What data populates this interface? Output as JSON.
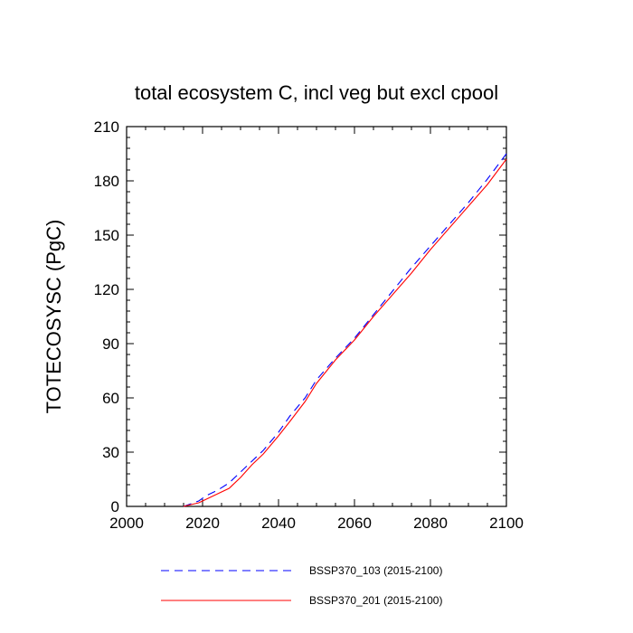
{
  "chart_data": {
    "type": "line",
    "title": "total ecosystem C, incl veg but excl cpool",
    "xlabel": "",
    "ylabel": "TOTECOSYSC  (PgC)",
    "xlim": [
      2000,
      2100
    ],
    "ylim": [
      0,
      210
    ],
    "xticks": [
      2000,
      2020,
      2040,
      2060,
      2080,
      2100
    ],
    "yticks": [
      0,
      30,
      60,
      90,
      120,
      150,
      180,
      210
    ],
    "grid": false,
    "legend_position": "bottom",
    "series": [
      {
        "name": "BSSP370_103 (2015-2100)",
        "color": "#0000ff",
        "dash": "dashed",
        "x": [
          2015,
          2017,
          2019,
          2021,
          2024,
          2027,
          2030,
          2033,
          2036,
          2040,
          2043,
          2047,
          2050,
          2055,
          2060,
          2065,
          2070,
          2075,
          2080,
          2085,
          2090,
          2095,
          2100
        ],
        "y": [
          0,
          1.5,
          3,
          6,
          9,
          13,
          19,
          25,
          31,
          41,
          50,
          60,
          70,
          82,
          93,
          106,
          119,
          132,
          144,
          156,
          168,
          181,
          195
        ]
      },
      {
        "name": "BSSP370_201 (2015-2100)",
        "color": "#ff0000",
        "dash": "solid",
        "x": [
          2015,
          2017,
          2019,
          2021,
          2024,
          2027,
          2030,
          2033,
          2036,
          2040,
          2043,
          2047,
          2050,
          2055,
          2060,
          2065,
          2070,
          2075,
          2080,
          2085,
          2090,
          2095,
          2100
        ],
        "y": [
          0,
          1,
          2,
          4,
          7,
          10,
          16,
          23,
          29,
          39,
          47,
          58,
          68,
          81,
          92,
          105,
          117,
          129,
          142,
          154,
          166,
          178,
          192
        ]
      }
    ]
  }
}
